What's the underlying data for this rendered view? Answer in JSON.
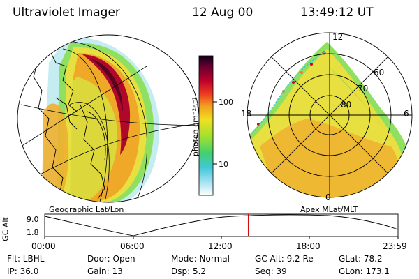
{
  "header": {
    "instrument": "Ultraviolet Imager",
    "date": "12 Aug 00",
    "time": "13:49:12 UT"
  },
  "panels": {
    "left_label": "Geographic Lat/Lon",
    "right_label": "Apex MLat/MLT"
  },
  "colorbar": {
    "unit_label": "photon cm⁻²s⁻¹",
    "tick_100": "100",
    "tick_10": "10"
  },
  "polar_grid": {
    "mlt_top": "12",
    "mlt_right": "6",
    "mlt_bottom": "0",
    "mlt_left": "18",
    "lat_60": "60",
    "lat_70": "70",
    "lat_80": "80"
  },
  "altitude_plot": {
    "axis_label": "GC Alt",
    "tick_high": "9.0",
    "tick_low": "1.8",
    "time_ticks": [
      "00:00",
      "06:00",
      "12:00",
      "18:00",
      "23:59"
    ],
    "current_fraction_of_day": 0.576
  },
  "status": {
    "flt": "Flt: LBHL",
    "door": "Door: Open",
    "mode": "Mode: Normal",
    "gc_alt": "GC Alt: 9.2 Re",
    "glat": "GLat:  78.2",
    "ip": "IP: 36.0",
    "gain": "Gain: 13",
    "dsp": "Dsp:     5.2",
    "seq": "Seq: 39",
    "glon": "GLon: 173.1"
  },
  "colors": {
    "aurora_bright": "#a0002a",
    "aurora_orange": "#f0a020",
    "aurora_yellow": "#f0e020",
    "aurora_green": "#70d840",
    "aurora_cyan": "#40c8d8",
    "marker_line": "#d00000"
  }
}
